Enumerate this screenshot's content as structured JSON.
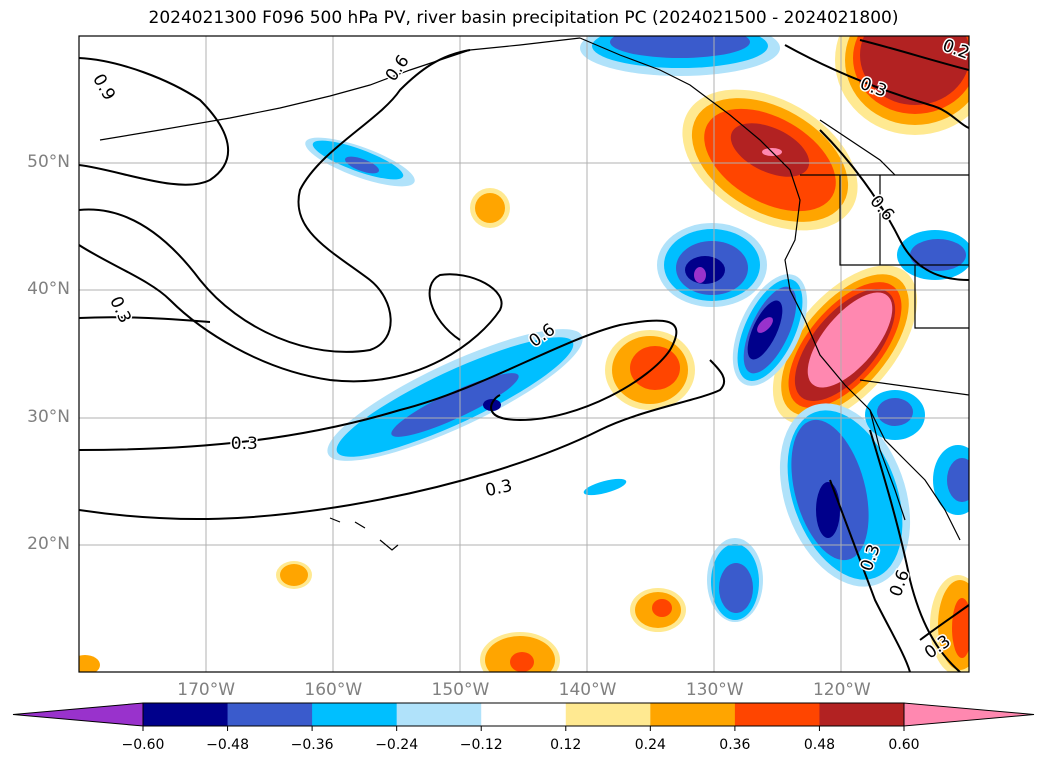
{
  "title": "2024021300 F096 500 hPa PV, river basin precipitation PC (2024021500 - 2024021800)",
  "map": {
    "extent": {
      "lon_min": -180,
      "lon_max": -110,
      "lat_min": 10,
      "lat_max": 60
    },
    "lat_labels": [
      {
        "lat": 50,
        "text": "50°N"
      },
      {
        "lat": 40,
        "text": "40°N"
      },
      {
        "lat": 30,
        "text": "30°N"
      },
      {
        "lat": 20,
        "text": "20°N"
      }
    ],
    "lon_labels": [
      {
        "lon": -170,
        "text": "170°W"
      },
      {
        "lon": -160,
        "text": "160°W"
      },
      {
        "lon": -150,
        "text": "150°W"
      },
      {
        "lon": -140,
        "text": "140°W"
      },
      {
        "lon": -130,
        "text": "130°W"
      },
      {
        "lon": -120,
        "text": "120°W"
      }
    ],
    "contour_labels": [
      {
        "text": "0.9",
        "lon": -178,
        "lat": 56,
        "rotate": 60
      },
      {
        "text": "0.6",
        "lon": -155,
        "lat": 57.5,
        "rotate": -55
      },
      {
        "text": "0.3",
        "lon": -117.5,
        "lat": 56,
        "rotate": 20
      },
      {
        "text": "0.2",
        "lon": -111,
        "lat": 59,
        "rotate": 20
      },
      {
        "text": "0.6",
        "lon": -116.8,
        "lat": 46.5,
        "rotate": 50
      },
      {
        "text": "0.3",
        "lon": -176.7,
        "lat": 38.5,
        "rotate": 65
      },
      {
        "text": "0.6",
        "lon": -143.6,
        "lat": 36.5,
        "rotate": -35
      },
      {
        "text": "0.3",
        "lon": -167,
        "lat": 28,
        "rotate": 0
      },
      {
        "text": "0.3",
        "lon": -147,
        "lat": 24.5,
        "rotate": -12
      },
      {
        "text": "0.3",
        "lon": -117.8,
        "lat": 19,
        "rotate": -70
      },
      {
        "text": "0.6",
        "lon": -115.5,
        "lat": 17,
        "rotate": -70
      },
      {
        "text": "0.3",
        "lon": -112.5,
        "lat": 12,
        "rotate": -35
      }
    ]
  },
  "colorbar": {
    "colors": [
      "#9932cc",
      "#00008b",
      "#3a5bcc",
      "#00bfff",
      "#b0e2fa",
      "#ffffff",
      "#ffe991",
      "#ffa500",
      "#ff4500",
      "#b22222",
      "#ff88b0"
    ],
    "ticks": [
      "−0.60",
      "−0.48",
      "−0.36",
      "−0.24",
      "−0.12",
      "0.12",
      "0.24",
      "0.36",
      "0.48",
      "0.60"
    ]
  }
}
